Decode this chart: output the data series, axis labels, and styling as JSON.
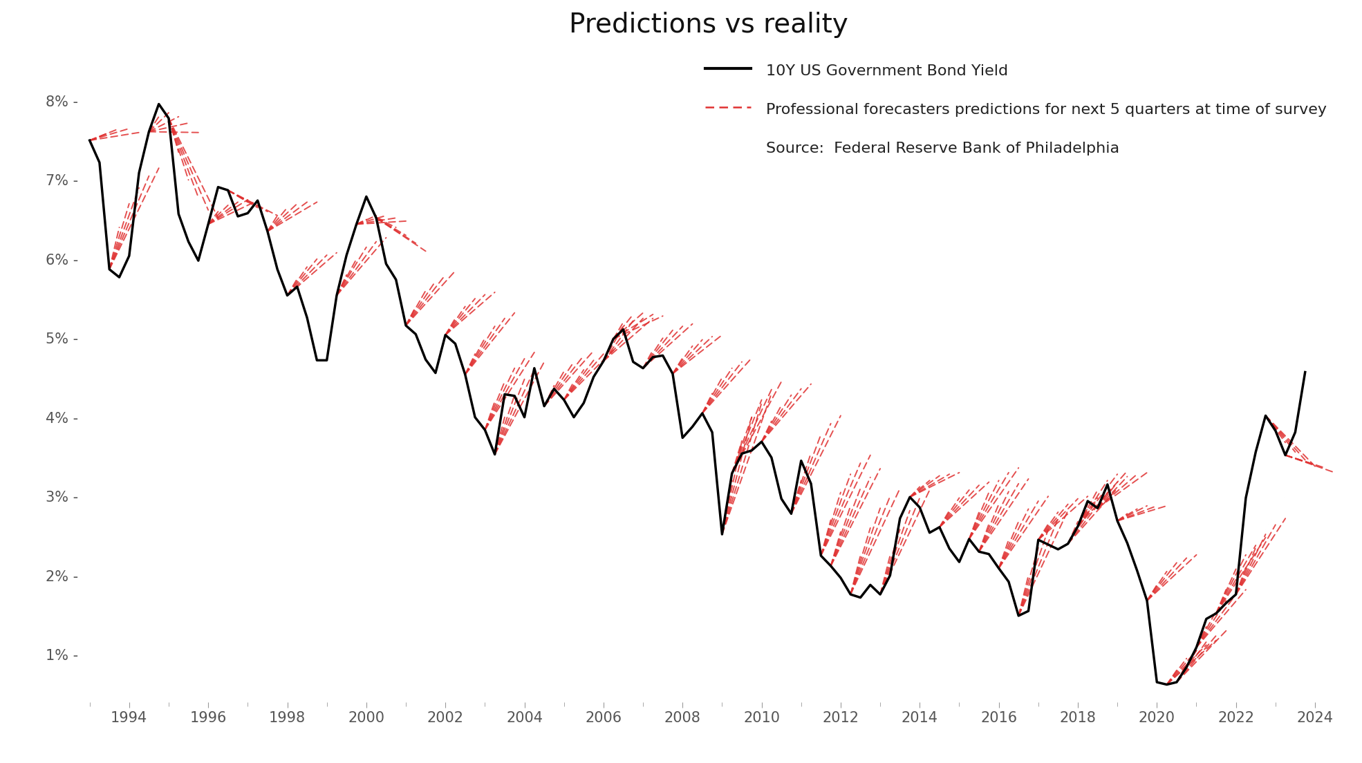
{
  "title": "Predictions vs reality",
  "legend_line1": "10Y US Government Bond Yield",
  "legend_line2": "Professional forecasters predictions for next 5 quarters at time of survey",
  "legend_source": "Source:  Federal Reserve Bank of Philadelphia",
  "background_color": "#ffffff",
  "line_color": "#000000",
  "forecast_color": "#e03030",
  "actual_data": {
    "dates": [
      1993.0,
      1993.25,
      1993.5,
      1993.75,
      1994.0,
      1994.25,
      1994.5,
      1994.75,
      1995.0,
      1995.25,
      1995.5,
      1995.75,
      1996.0,
      1996.25,
      1996.5,
      1996.75,
      1997.0,
      1997.25,
      1997.5,
      1997.75,
      1998.0,
      1998.25,
      1998.5,
      1998.75,
      1999.0,
      1999.25,
      1999.5,
      1999.75,
      2000.0,
      2000.25,
      2000.5,
      2000.75,
      2001.0,
      2001.25,
      2001.5,
      2001.75,
      2002.0,
      2002.25,
      2002.5,
      2002.75,
      2003.0,
      2003.25,
      2003.5,
      2003.75,
      2004.0,
      2004.25,
      2004.5,
      2004.75,
      2005.0,
      2005.25,
      2005.5,
      2005.75,
      2006.0,
      2006.25,
      2006.5,
      2006.75,
      2007.0,
      2007.25,
      2007.5,
      2007.75,
      2008.0,
      2008.25,
      2008.5,
      2008.75,
      2009.0,
      2009.25,
      2009.5,
      2009.75,
      2010.0,
      2010.25,
      2010.5,
      2010.75,
      2011.0,
      2011.25,
      2011.5,
      2011.75,
      2012.0,
      2012.25,
      2012.5,
      2012.75,
      2013.0,
      2013.25,
      2013.5,
      2013.75,
      2014.0,
      2014.25,
      2014.5,
      2014.75,
      2015.0,
      2015.25,
      2015.5,
      2015.75,
      2016.0,
      2016.25,
      2016.5,
      2016.75,
      2017.0,
      2017.25,
      2017.5,
      2017.75,
      2018.0,
      2018.25,
      2018.5,
      2018.75,
      2019.0,
      2019.25,
      2019.5,
      2019.75,
      2020.0,
      2020.25,
      2020.5,
      2020.75,
      2021.0,
      2021.25,
      2021.5,
      2021.75,
      2022.0,
      2022.25,
      2022.5,
      2022.75,
      2023.0,
      2023.25,
      2023.5,
      2023.75
    ],
    "values": [
      7.5,
      7.22,
      5.87,
      5.77,
      6.04,
      7.09,
      7.61,
      7.96,
      7.78,
      6.57,
      6.22,
      5.98,
      6.44,
      6.91,
      6.87,
      6.54,
      6.58,
      6.74,
      6.35,
      5.87,
      5.54,
      5.65,
      5.26,
      4.72,
      4.72,
      5.54,
      6.05,
      6.44,
      6.79,
      6.52,
      5.94,
      5.74,
      5.16,
      5.05,
      4.73,
      4.56,
      5.04,
      4.93,
      4.54,
      4.0,
      3.84,
      3.53,
      4.29,
      4.27,
      4.0,
      4.62,
      4.14,
      4.36,
      4.22,
      4.0,
      4.18,
      4.51,
      4.71,
      4.99,
      5.11,
      4.7,
      4.62,
      4.76,
      4.78,
      4.55,
      3.74,
      3.88,
      4.05,
      3.81,
      2.52,
      3.29,
      3.54,
      3.58,
      3.69,
      3.49,
      2.97,
      2.78,
      3.45,
      3.16,
      2.25,
      2.12,
      1.97,
      1.76,
      1.72,
      1.88,
      1.76,
      2.0,
      2.72,
      2.99,
      2.86,
      2.54,
      2.61,
      2.34,
      2.17,
      2.46,
      2.3,
      2.27,
      2.09,
      1.92,
      1.49,
      1.55,
      2.45,
      2.39,
      2.33,
      2.4,
      2.62,
      2.94,
      2.85,
      3.15,
      2.69,
      2.41,
      2.06,
      1.68,
      0.65,
      0.62,
      0.65,
      0.84,
      1.09,
      1.45,
      1.52,
      1.65,
      1.76,
      2.98,
      3.56,
      4.02,
      3.83,
      3.52,
      3.81,
      4.57
    ],
    "xlim": [
      1992.8,
      2024.5
    ],
    "ylim": [
      0.4,
      8.6
    ]
  },
  "forecast_sets": [
    {
      "survey_date": 1993.0,
      "survey_val": 7.5,
      "targets": [
        7.55,
        7.6,
        7.65,
        7.65,
        7.6
      ]
    },
    {
      "survey_date": 1993.5,
      "survey_val": 5.87,
      "targets": [
        6.4,
        6.7,
        6.9,
        7.05,
        7.15
      ]
    },
    {
      "survey_date": 1994.5,
      "survey_val": 7.61,
      "targets": [
        7.8,
        7.85,
        7.8,
        7.72,
        7.6
      ]
    },
    {
      "survey_date": 1995.0,
      "survey_val": 7.78,
      "targets": [
        7.35,
        7.0,
        6.78,
        6.62,
        6.52
      ]
    },
    {
      "survey_date": 1996.0,
      "survey_val": 6.44,
      "targets": [
        6.6,
        6.68,
        6.72,
        6.75,
        6.74
      ]
    },
    {
      "survey_date": 1996.5,
      "survey_val": 6.87,
      "targets": [
        6.8,
        6.72,
        6.65,
        6.6,
        6.55
      ]
    },
    {
      "survey_date": 1997.5,
      "survey_val": 6.35,
      "targets": [
        6.55,
        6.65,
        6.7,
        6.72,
        6.72
      ]
    },
    {
      "survey_date": 1998.0,
      "survey_val": 5.54,
      "targets": [
        5.75,
        5.9,
        6.0,
        6.05,
        6.08
      ]
    },
    {
      "survey_date": 1999.25,
      "survey_val": 5.54,
      "targets": [
        5.8,
        6.0,
        6.15,
        6.22,
        6.27
      ]
    },
    {
      "survey_date": 1999.75,
      "survey_val": 6.44,
      "targets": [
        6.5,
        6.55,
        6.55,
        6.52,
        6.48
      ]
    },
    {
      "survey_date": 2000.25,
      "survey_val": 6.52,
      "targets": [
        6.48,
        6.4,
        6.3,
        6.2,
        6.1
      ]
    },
    {
      "survey_date": 2001.0,
      "survey_val": 5.16,
      "targets": [
        5.4,
        5.6,
        5.72,
        5.8,
        5.85
      ]
    },
    {
      "survey_date": 2002.0,
      "survey_val": 5.04,
      "targets": [
        5.25,
        5.4,
        5.5,
        5.55,
        5.58
      ]
    },
    {
      "survey_date": 2002.5,
      "survey_val": 4.54,
      "targets": [
        4.8,
        5.0,
        5.15,
        5.25,
        5.32
      ]
    },
    {
      "survey_date": 2003.0,
      "survey_val": 3.84,
      "targets": [
        4.2,
        4.45,
        4.62,
        4.74,
        4.82
      ]
    },
    {
      "survey_date": 2003.25,
      "survey_val": 3.53,
      "targets": [
        4.0,
        4.28,
        4.48,
        4.6,
        4.7
      ]
    },
    {
      "survey_date": 2004.5,
      "survey_val": 4.14,
      "targets": [
        4.4,
        4.58,
        4.7,
        4.78,
        4.84
      ]
    },
    {
      "survey_date": 2005.0,
      "survey_val": 4.22,
      "targets": [
        4.45,
        4.6,
        4.72,
        4.8,
        4.85
      ]
    },
    {
      "survey_date": 2006.0,
      "survey_val": 4.71,
      "targets": [
        5.0,
        5.15,
        5.22,
        5.25,
        5.25
      ]
    },
    {
      "survey_date": 2006.25,
      "survey_val": 4.99,
      "targets": [
        5.2,
        5.3,
        5.32,
        5.3,
        5.28
      ]
    },
    {
      "survey_date": 2007.0,
      "survey_val": 4.62,
      "targets": [
        4.85,
        5.0,
        5.1,
        5.15,
        5.18
      ]
    },
    {
      "survey_date": 2007.75,
      "survey_val": 4.55,
      "targets": [
        4.75,
        4.9,
        4.98,
        5.02,
        5.04
      ]
    },
    {
      "survey_date": 2008.5,
      "survey_val": 4.05,
      "targets": [
        4.3,
        4.5,
        4.62,
        4.7,
        4.75
      ]
    },
    {
      "survey_date": 2009.0,
      "survey_val": 2.52,
      "targets": [
        3.2,
        3.7,
        4.0,
        4.18,
        4.3
      ]
    },
    {
      "survey_date": 2009.25,
      "survey_val": 3.29,
      "targets": [
        3.7,
        4.0,
        4.22,
        4.35,
        4.45
      ]
    },
    {
      "survey_date": 2010.0,
      "survey_val": 3.69,
      "targets": [
        3.95,
        4.15,
        4.28,
        4.36,
        4.42
      ]
    },
    {
      "survey_date": 2010.75,
      "survey_val": 2.78,
      "targets": [
        3.2,
        3.55,
        3.78,
        3.92,
        4.02
      ]
    },
    {
      "survey_date": 2011.5,
      "survey_val": 2.25,
      "targets": [
        2.7,
        3.05,
        3.28,
        3.42,
        3.52
      ]
    },
    {
      "survey_date": 2011.75,
      "survey_val": 2.12,
      "targets": [
        2.55,
        2.88,
        3.1,
        3.24,
        3.35
      ]
    },
    {
      "survey_date": 2012.25,
      "survey_val": 1.76,
      "targets": [
        2.25,
        2.6,
        2.85,
        3.0,
        3.1
      ]
    },
    {
      "survey_date": 2013.0,
      "survey_val": 1.76,
      "targets": [
        2.25,
        2.58,
        2.82,
        2.98,
        3.08
      ]
    },
    {
      "survey_date": 2013.75,
      "survey_val": 2.99,
      "targets": [
        3.12,
        3.2,
        3.26,
        3.28,
        3.3
      ]
    },
    {
      "survey_date": 2014.5,
      "survey_val": 2.61,
      "targets": [
        2.82,
        2.98,
        3.08,
        3.14,
        3.18
      ]
    },
    {
      "survey_date": 2015.25,
      "survey_val": 2.46,
      "targets": [
        2.8,
        3.05,
        3.2,
        3.3,
        3.36
      ]
    },
    {
      "survey_date": 2015.5,
      "survey_val": 2.3,
      "targets": [
        2.65,
        2.9,
        3.06,
        3.16,
        3.22
      ]
    },
    {
      "survey_date": 2016.0,
      "survey_val": 2.09,
      "targets": [
        2.45,
        2.68,
        2.84,
        2.94,
        3.0
      ]
    },
    {
      "survey_date": 2016.5,
      "survey_val": 1.49,
      "targets": [
        2.0,
        2.35,
        2.58,
        2.72,
        2.82
      ]
    },
    {
      "survey_date": 2017.0,
      "survey_val": 2.45,
      "targets": [
        2.65,
        2.8,
        2.9,
        2.97,
        3.0
      ]
    },
    {
      "survey_date": 2017.75,
      "survey_val": 2.4,
      "targets": [
        2.68,
        2.85,
        2.98,
        3.05,
        3.1
      ]
    },
    {
      "survey_date": 2018.0,
      "survey_val": 2.62,
      "targets": [
        2.9,
        3.08,
        3.2,
        3.28,
        3.32
      ]
    },
    {
      "survey_date": 2018.5,
      "survey_val": 2.85,
      "targets": [
        3.05,
        3.18,
        3.25,
        3.28,
        3.3
      ]
    },
    {
      "survey_date": 2019.0,
      "survey_val": 2.69,
      "targets": [
        2.78,
        2.84,
        2.88,
        2.88,
        2.88
      ]
    },
    {
      "survey_date": 2019.75,
      "survey_val": 1.68,
      "targets": [
        1.88,
        2.05,
        2.16,
        2.22,
        2.26
      ]
    },
    {
      "survey_date": 2020.25,
      "survey_val": 0.62,
      "targets": [
        0.8,
        0.95,
        1.05,
        1.12,
        1.18
      ]
    },
    {
      "survey_date": 2020.5,
      "survey_val": 0.65,
      "targets": [
        0.88,
        1.05,
        1.16,
        1.24,
        1.3
      ]
    },
    {
      "survey_date": 2021.0,
      "survey_val": 1.09,
      "targets": [
        1.35,
        1.55,
        1.68,
        1.76,
        1.82
      ]
    },
    {
      "survey_date": 2021.5,
      "survey_val": 1.52,
      "targets": [
        1.82,
        2.08,
        2.26,
        2.38,
        2.48
      ]
    },
    {
      "survey_date": 2022.0,
      "survey_val": 1.76,
      "targets": [
        2.1,
        2.35,
        2.52,
        2.64,
        2.72
      ]
    },
    {
      "survey_date": 2022.75,
      "survey_val": 4.02,
      "targets": [
        3.82,
        3.68,
        3.56,
        3.46,
        3.38
      ]
    },
    {
      "survey_date": 2023.25,
      "survey_val": 3.52,
      "targets": [
        3.48,
        3.44,
        3.4,
        3.36,
        3.3
      ]
    }
  ]
}
